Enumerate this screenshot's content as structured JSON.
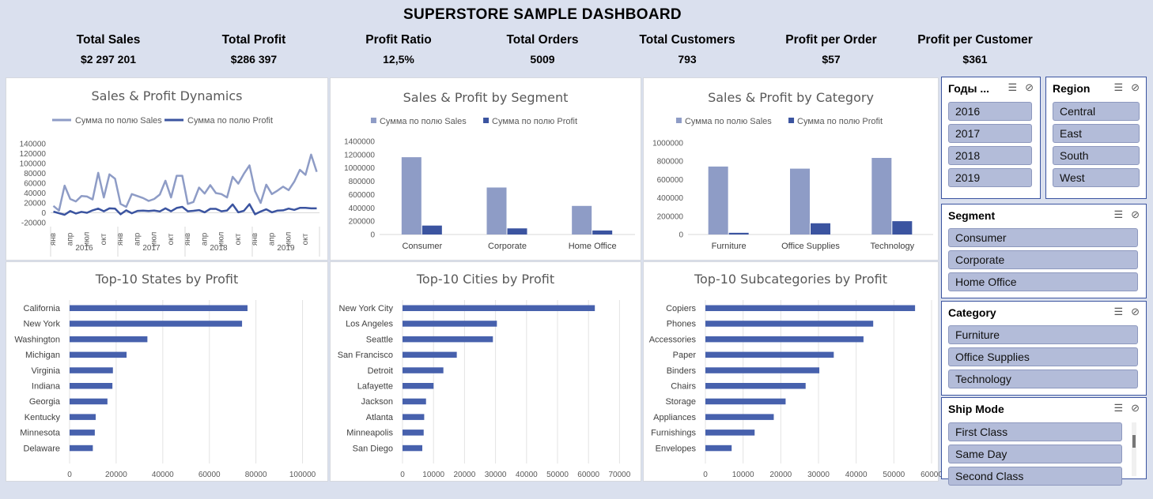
{
  "title": "SUPERSTORE SAMPLE DASHBOARD",
  "kpis": [
    {
      "label": "Total Sales",
      "value": "$2 297 201"
    },
    {
      "label": "Total Profit",
      "value": "$286 397"
    },
    {
      "label": "Profit Ratio",
      "value": "12,5%"
    },
    {
      "label": "Total Orders",
      "value": "5009"
    },
    {
      "label": "Total Customers",
      "value": "793"
    },
    {
      "label": "Profit per Order",
      "value": "$57"
    },
    {
      "label": "Profit per Customer",
      "value": "$361"
    }
  ],
  "colors": {
    "sales": "#8e9cc6",
    "profit": "#3b54a0",
    "bar": "#4761ad"
  },
  "chart_data": [
    {
      "id": "dynamics",
      "type": "line",
      "title": "Sales & Profit Dynamics",
      "legend": [
        "Сумма по полю Sales",
        "Сумма по полю Profit"
      ],
      "ylim": [
        -20000,
        140000
      ],
      "yticks": [
        -20000,
        0,
        20000,
        40000,
        60000,
        80000,
        100000,
        120000,
        140000
      ],
      "month_labels": [
        "янв",
        "апр",
        "июл",
        "окт"
      ],
      "years": [
        "2016",
        "2017",
        "2018",
        "2019"
      ],
      "series": [
        {
          "name": "Сумма по полю Sales",
          "values": [
            14000,
            4500,
            55000,
            28000,
            23000,
            34000,
            33000,
            27000,
            81000,
            31000,
            78000,
            69000,
            18000,
            12000,
            38000,
            34000,
            30000,
            24000,
            28000,
            37000,
            65000,
            31000,
            75000,
            75000,
            18000,
            22000,
            51000,
            39000,
            56000,
            40000,
            38000,
            31000,
            73000,
            59000,
            79000,
            96000,
            44000,
            20000,
            57000,
            38000,
            45000,
            53000,
            46000,
            63000,
            87000,
            77000,
            118000,
            83000
          ]
        },
        {
          "name": "Сумма по полю Profit",
          "values": [
            2400,
            -1000,
            -4000,
            3500,
            -1500,
            2000,
            0,
            5000,
            8500,
            3000,
            9000,
            8500,
            -3000,
            5000,
            -1000,
            3800,
            4500,
            3500,
            4600,
            2800,
            9000,
            3000,
            9700,
            12000,
            3000,
            4000,
            5500,
            1000,
            8000,
            8000,
            3000,
            4600,
            17000,
            1000,
            4000,
            17500,
            -3000,
            2600,
            7000,
            1000,
            4500,
            5000,
            8500,
            6000,
            10000,
            10000,
            9000,
            9000
          ]
        }
      ]
    },
    {
      "id": "segment",
      "type": "bar",
      "title": "Sales & Profit by Segment",
      "legend": [
        "Сумма по полю Sales",
        "Сумма по полю Profit"
      ],
      "categories": [
        "Consumer",
        "Corporate",
        "Home Office"
      ],
      "ylim": [
        0,
        1400000
      ],
      "yticks": [
        0,
        200000,
        400000,
        600000,
        800000,
        1000000,
        1200000,
        1400000
      ],
      "series": [
        {
          "name": "Сумма по полю Sales",
          "values": [
            1161401,
            706146,
            429653
          ]
        },
        {
          "name": "Сумма по полю Profit",
          "values": [
            134119,
            91979,
            60299
          ]
        }
      ]
    },
    {
      "id": "category",
      "type": "bar",
      "title": "Sales & Profit by Category",
      "legend": [
        "Сумма по полю Sales",
        "Сумма по полю Profit"
      ],
      "categories": [
        "Furniture",
        "Office Supplies",
        "Technology"
      ],
      "ylim": [
        0,
        1000000
      ],
      "yticks": [
        0,
        200000,
        400000,
        600000,
        800000,
        1000000
      ],
      "series": [
        {
          "name": "Сумма по полю Sales",
          "values": [
            741999,
            719047,
            836154
          ]
        },
        {
          "name": "Сумма по полю Profit",
          "values": [
            18451,
            122491,
            145455
          ]
        }
      ]
    },
    {
      "id": "states",
      "type": "bar",
      "title": "Top-10 States by Profit",
      "categories": [
        "California",
        "New York",
        "Washington",
        "Michigan",
        "Virginia",
        "Indiana",
        "Georgia",
        "Kentucky",
        "Minnesota",
        "Delaware"
      ],
      "values": [
        76381,
        74039,
        33403,
        24463,
        18598,
        18383,
        16250,
        11200,
        10823,
        9977
      ],
      "xlim": [
        0,
        110000
      ],
      "xticks": [
        0,
        20000,
        40000,
        60000,
        80000,
        100000
      ]
    },
    {
      "id": "cities",
      "type": "bar",
      "title": "Top-10 Cities by Profit",
      "categories": [
        "New York City",
        "Los Angeles",
        "Seattle",
        "San Francisco",
        "Detroit",
        "Lafayette",
        "Jackson",
        "Atlanta",
        "Minneapolis",
        "San Diego"
      ],
      "values": [
        62037,
        30441,
        29156,
        17507,
        13181,
        10018,
        7582,
        6994,
        6825,
        6378
      ],
      "xlim": [
        0,
        75000
      ],
      "xticks": [
        0,
        10000,
        20000,
        30000,
        40000,
        50000,
        60000,
        70000
      ]
    },
    {
      "id": "subcats",
      "type": "bar",
      "title": "Top-10 Subcategories by Profit",
      "categories": [
        "Copiers",
        "Phones",
        "Accessories",
        "Paper",
        "Binders",
        "Chairs",
        "Storage",
        "Appliances",
        "Furnishings",
        "Envelopes"
      ],
      "values": [
        55618,
        44516,
        41937,
        34054,
        30222,
        26590,
        21279,
        18138,
        13059,
        6964
      ],
      "xlim": [
        0,
        60000
      ],
      "xticks": [
        0,
        10000,
        20000,
        30000,
        40000,
        50000,
        60000
      ]
    }
  ],
  "slicers": {
    "years": {
      "title": "Годы ...",
      "items": [
        "2016",
        "2017",
        "2018",
        "2019"
      ]
    },
    "region": {
      "title": "Region",
      "items": [
        "Central",
        "East",
        "South",
        "West"
      ]
    },
    "segment": {
      "title": "Segment",
      "items": [
        "Consumer",
        "Corporate",
        "Home Office"
      ]
    },
    "category": {
      "title": "Category",
      "items": [
        "Furniture",
        "Office Supplies",
        "Technology"
      ]
    },
    "shipmode": {
      "title": "Ship Mode",
      "items": [
        "First Class",
        "Same Day",
        "Second Class"
      ]
    }
  }
}
